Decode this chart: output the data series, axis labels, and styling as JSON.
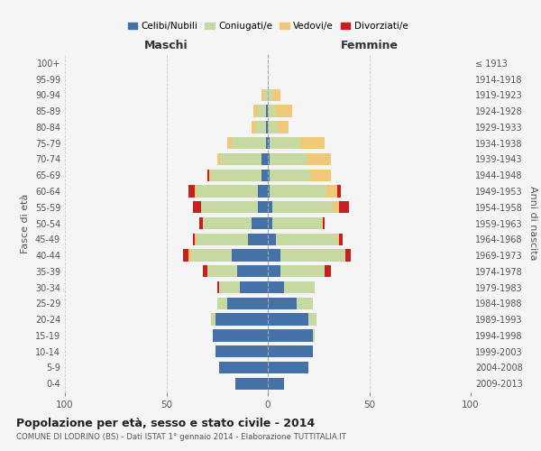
{
  "age_groups": [
    "0-4",
    "5-9",
    "10-14",
    "15-19",
    "20-24",
    "25-29",
    "30-34",
    "35-39",
    "40-44",
    "45-49",
    "50-54",
    "55-59",
    "60-64",
    "65-69",
    "70-74",
    "75-79",
    "80-84",
    "85-89",
    "90-94",
    "95-99",
    "100+"
  ],
  "birth_years": [
    "2009-2013",
    "2004-2008",
    "1999-2003",
    "1994-1998",
    "1989-1993",
    "1984-1988",
    "1979-1983",
    "1974-1978",
    "1969-1973",
    "1964-1968",
    "1959-1963",
    "1954-1958",
    "1949-1953",
    "1944-1948",
    "1939-1943",
    "1934-1938",
    "1929-1933",
    "1924-1928",
    "1919-1923",
    "1914-1918",
    "≤ 1913"
  ],
  "males": {
    "celibi": [
      16,
      24,
      26,
      27,
      26,
      20,
      14,
      15,
      18,
      10,
      8,
      5,
      5,
      3,
      3,
      1,
      1,
      1,
      0,
      0,
      0
    ],
    "coniugati": [
      0,
      0,
      0,
      0,
      2,
      5,
      10,
      15,
      20,
      25,
      24,
      28,
      30,
      25,
      20,
      17,
      5,
      4,
      2,
      0,
      0
    ],
    "vedovi": [
      0,
      0,
      0,
      0,
      0,
      0,
      0,
      0,
      1,
      1,
      0,
      0,
      1,
      1,
      2,
      2,
      2,
      2,
      1,
      0,
      0
    ],
    "divorziati": [
      0,
      0,
      0,
      0,
      0,
      0,
      1,
      2,
      3,
      1,
      2,
      4,
      3,
      1,
      0,
      0,
      0,
      0,
      0,
      0,
      0
    ]
  },
  "females": {
    "nubili": [
      8,
      20,
      22,
      22,
      20,
      14,
      8,
      6,
      6,
      4,
      2,
      2,
      1,
      1,
      1,
      1,
      0,
      0,
      0,
      0,
      0
    ],
    "coniugate": [
      0,
      0,
      0,
      1,
      4,
      8,
      15,
      22,
      32,
      30,
      24,
      30,
      28,
      20,
      18,
      15,
      5,
      4,
      2,
      0,
      0
    ],
    "vedove": [
      0,
      0,
      0,
      0,
      0,
      0,
      0,
      0,
      0,
      1,
      1,
      3,
      5,
      10,
      12,
      12,
      5,
      8,
      4,
      0,
      0
    ],
    "divorziate": [
      0,
      0,
      0,
      0,
      0,
      0,
      0,
      3,
      3,
      2,
      1,
      5,
      2,
      0,
      0,
      0,
      0,
      0,
      0,
      0,
      0
    ]
  },
  "colors": {
    "celibi_nubili": "#4472a8",
    "coniugati": "#c5d9a0",
    "vedovi": "#f0c878",
    "divorziati": "#c82020"
  },
  "xlim": 100,
  "title": "Popolazione per età, sesso e stato civile - 2014",
  "subtitle": "COMUNE DI LODRINO (BS) - Dati ISTAT 1° gennaio 2014 - Elaborazione TUTTITALIA.IT",
  "xlabel_left": "Maschi",
  "xlabel_right": "Femmine",
  "ylabel": "Fasce di età",
  "ylabel_right": "Anni di nascita",
  "legend_labels": [
    "Celibi/Nubili",
    "Coniugati/e",
    "Vedovi/e",
    "Divorziati/e"
  ],
  "bg_color": "#f5f5f5",
  "grid_color": "#cccccc"
}
